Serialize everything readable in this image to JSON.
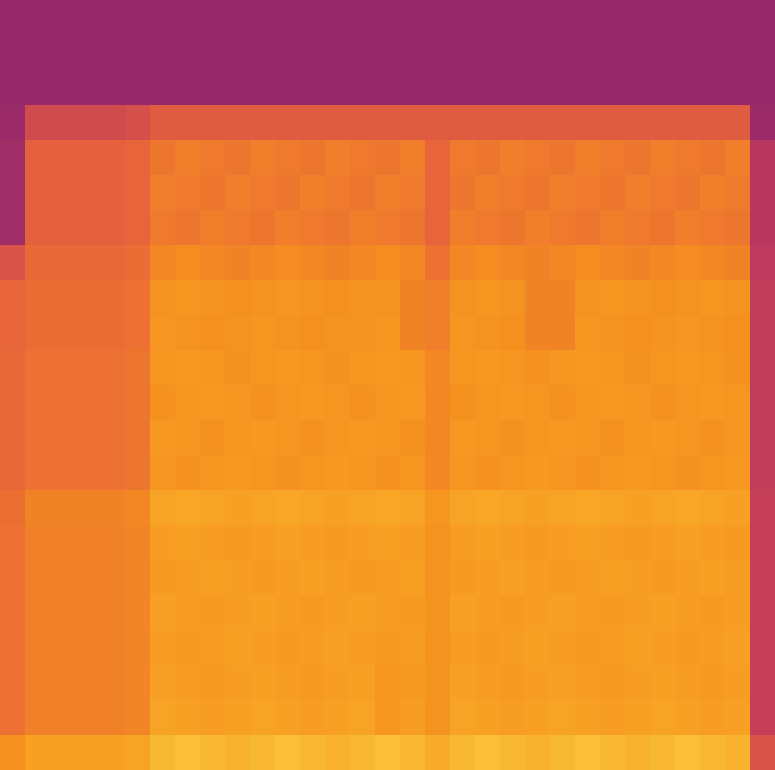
{
  "chart_data": {
    "type": "heatmap",
    "tick_labels": false,
    "zlim": [
      0,
      100
    ],
    "cells": [
      [
        10,
        10,
        10,
        10,
        10,
        10,
        10,
        10,
        10,
        10,
        10,
        10,
        10,
        10,
        10,
        10,
        10,
        10,
        10,
        10,
        10,
        10,
        10,
        10,
        10,
        10,
        10,
        10,
        10,
        10,
        10
      ],
      [
        10,
        10,
        10,
        10,
        10,
        10,
        10,
        10,
        10,
        10,
        10,
        10,
        10,
        10,
        10,
        10,
        10,
        10,
        10,
        10,
        10,
        10,
        10,
        10,
        10,
        10,
        10,
        10,
        10,
        10,
        10
      ],
      [
        10,
        10,
        10,
        10,
        10,
        10,
        10,
        10,
        10,
        10,
        10,
        10,
        10,
        10,
        10,
        10,
        10,
        10,
        10,
        10,
        10,
        10,
        10,
        10,
        10,
        10,
        10,
        10,
        10,
        10,
        10
      ],
      [
        12,
        35,
        35,
        35,
        35,
        38,
        45,
        45,
        45,
        45,
        45,
        45,
        45,
        45,
        45,
        45,
        45,
        45,
        45,
        45,
        45,
        45,
        45,
        45,
        45,
        45,
        45,
        45,
        45,
        45,
        12
      ],
      [
        14,
        48,
        48,
        48,
        48,
        50,
        58,
        62,
        60,
        58,
        62,
        60,
        58,
        62,
        60,
        58,
        62,
        50,
        60,
        58,
        62,
        60,
        58,
        62,
        60,
        58,
        62,
        60,
        58,
        62,
        22
      ],
      [
        14,
        48,
        48,
        48,
        48,
        50,
        62,
        60,
        58,
        62,
        60,
        58,
        62,
        60,
        58,
        62,
        60,
        50,
        58,
        62,
        60,
        58,
        62,
        60,
        58,
        62,
        60,
        58,
        62,
        60,
        22
      ],
      [
        14,
        48,
        48,
        48,
        48,
        50,
        60,
        58,
        62,
        60,
        58,
        62,
        60,
        58,
        62,
        60,
        58,
        50,
        62,
        60,
        58,
        62,
        60,
        58,
        62,
        60,
        58,
        62,
        60,
        58,
        22
      ],
      [
        40,
        52,
        52,
        52,
        52,
        54,
        66,
        68,
        66,
        64,
        66,
        68,
        66,
        64,
        66,
        68,
        66,
        56,
        66,
        68,
        66,
        64,
        66,
        68,
        66,
        64,
        66,
        68,
        66,
        64,
        24
      ],
      [
        50,
        54,
        54,
        54,
        54,
        56,
        72,
        74,
        72,
        70,
        72,
        74,
        72,
        70,
        72,
        72,
        64,
        62,
        72,
        74,
        72,
        64,
        64,
        72,
        74,
        72,
        70,
        72,
        74,
        72,
        26
      ],
      [
        50,
        54,
        54,
        54,
        54,
        56,
        74,
        72,
        70,
        72,
        74,
        72,
        70,
        72,
        72,
        74,
        64,
        62,
        74,
        72,
        70,
        64,
        64,
        74,
        72,
        70,
        72,
        74,
        72,
        70,
        26
      ],
      [
        52,
        56,
        56,
        56,
        56,
        58,
        73,
        75,
        73,
        71,
        73,
        75,
        73,
        71,
        73,
        75,
        73,
        66,
        73,
        75,
        73,
        71,
        73,
        75,
        73,
        71,
        73,
        75,
        73,
        71,
        26
      ],
      [
        52,
        56,
        56,
        56,
        56,
        58,
        71,
        73,
        75,
        73,
        71,
        73,
        75,
        73,
        71,
        73,
        75,
        66,
        71,
        73,
        75,
        73,
        71,
        73,
        75,
        73,
        71,
        73,
        75,
        73,
        26
      ],
      [
        52,
        56,
        56,
        56,
        56,
        58,
        75,
        73,
        71,
        73,
        75,
        73,
        71,
        73,
        75,
        73,
        71,
        66,
        75,
        73,
        71,
        73,
        75,
        73,
        71,
        73,
        75,
        73,
        71,
        73,
        26
      ],
      [
        52,
        56,
        56,
        56,
        56,
        58,
        73,
        71,
        73,
        75,
        73,
        71,
        73,
        75,
        73,
        71,
        73,
        66,
        73,
        71,
        73,
        75,
        73,
        71,
        73,
        75,
        73,
        71,
        73,
        75,
        26
      ],
      [
        55,
        64,
        64,
        64,
        64,
        66,
        82,
        84,
        82,
        80,
        82,
        84,
        82,
        80,
        82,
        84,
        82,
        74,
        82,
        84,
        82,
        80,
        82,
        84,
        82,
        80,
        82,
        84,
        82,
        80,
        28
      ],
      [
        56,
        63,
        63,
        63,
        63,
        65,
        78,
        80,
        78,
        76,
        78,
        80,
        78,
        76,
        78,
        80,
        78,
        72,
        78,
        80,
        78,
        76,
        78,
        80,
        78,
        76,
        78,
        80,
        78,
        76,
        28
      ],
      [
        56,
        63,
        63,
        63,
        63,
        65,
        76,
        78,
        80,
        78,
        76,
        78,
        80,
        78,
        76,
        78,
        80,
        72,
        76,
        78,
        80,
        78,
        76,
        78,
        80,
        78,
        76,
        78,
        80,
        78,
        28
      ],
      [
        56,
        63,
        63,
        63,
        63,
        65,
        80,
        78,
        76,
        78,
        80,
        78,
        76,
        78,
        80,
        78,
        76,
        72,
        80,
        78,
        76,
        78,
        80,
        78,
        76,
        78,
        80,
        78,
        76,
        78,
        28
      ],
      [
        56,
        63,
        63,
        63,
        63,
        65,
        78,
        76,
        78,
        80,
        78,
        76,
        78,
        80,
        78,
        76,
        78,
        72,
        78,
        76,
        78,
        80,
        78,
        76,
        78,
        80,
        78,
        76,
        78,
        80,
        28
      ],
      [
        56,
        63,
        63,
        63,
        63,
        65,
        80,
        78,
        76,
        78,
        80,
        78,
        76,
        78,
        80,
        74,
        76,
        72,
        80,
        78,
        76,
        78,
        80,
        78,
        76,
        78,
        80,
        78,
        76,
        78,
        28
      ],
      [
        56,
        63,
        63,
        63,
        63,
        65,
        82,
        80,
        78,
        80,
        82,
        80,
        78,
        80,
        82,
        74,
        78,
        72,
        82,
        80,
        78,
        80,
        82,
        80,
        78,
        80,
        82,
        80,
        78,
        80,
        28
      ],
      [
        70,
        80,
        80,
        80,
        80,
        82,
        90,
        92,
        90,
        88,
        90,
        92,
        90,
        88,
        90,
        92,
        90,
        86,
        90,
        92,
        90,
        88,
        90,
        92,
        90,
        88,
        90,
        92,
        90,
        88,
        40
      ]
    ]
  }
}
